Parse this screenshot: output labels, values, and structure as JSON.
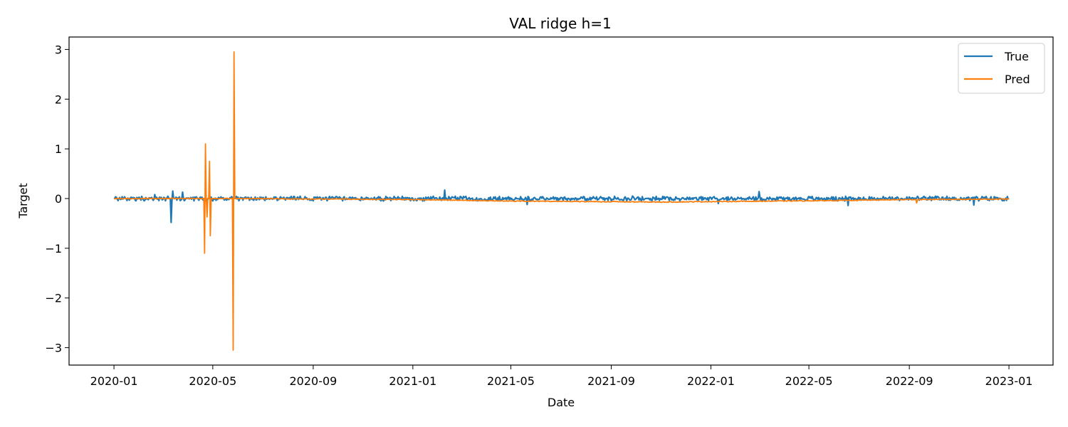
{
  "chart_data": {
    "type": "line",
    "title": "VAL ridge h=1",
    "xlabel": "Date",
    "ylabel": "Target",
    "xlim": [
      "2019-11-07",
      "2023-02-24"
    ],
    "ylim": [
      -3.35,
      3.25
    ],
    "x_ticks": [
      "2020-01",
      "2020-05",
      "2020-09",
      "2021-01",
      "2021-05",
      "2021-09",
      "2022-01",
      "2022-05",
      "2022-09",
      "2023-01"
    ],
    "y_ticks": [
      -3,
      -2,
      -1,
      0,
      1,
      2,
      3
    ],
    "y_tick_labels": [
      "−3",
      "−2",
      "−1",
      "0",
      "1",
      "2",
      "3"
    ],
    "grid": false,
    "legend_position": "top-right",
    "date_range": [
      "2020-01-01",
      "2023-01-01"
    ],
    "series": [
      {
        "name": "True",
        "color": "#1f77b4",
        "noise_amplitude": 0.035,
        "points": [
          {
            "x": "2020-01-01",
            "y": 0.0
          },
          {
            "x": "2020-02-20",
            "y": 0.08
          },
          {
            "x": "2020-03-11",
            "y": -0.48
          },
          {
            "x": "2020-03-13",
            "y": 0.15
          },
          {
            "x": "2020-03-25",
            "y": 0.13
          },
          {
            "x": "2021-02-09",
            "y": 0.17
          },
          {
            "x": "2021-05-21",
            "y": -0.12
          },
          {
            "x": "2022-01-10",
            "y": -0.1
          },
          {
            "x": "2022-03-01",
            "y": 0.14
          },
          {
            "x": "2022-06-18",
            "y": -0.14
          },
          {
            "x": "2022-11-19",
            "y": -0.13
          },
          {
            "x": "2023-01-01",
            "y": 0.0
          }
        ]
      },
      {
        "name": "Pred",
        "color": "#ff7f0e",
        "noise_amplitude": 0.008,
        "baseline": [
          {
            "x": "2020-01-01",
            "y": 0.0
          },
          {
            "x": "2020-06-01",
            "y": 0.0
          },
          {
            "x": "2021-01-01",
            "y": -0.02
          },
          {
            "x": "2021-05-01",
            "y": -0.05
          },
          {
            "x": "2021-11-01",
            "y": -0.07
          },
          {
            "x": "2022-06-01",
            "y": -0.04
          },
          {
            "x": "2022-09-01",
            "y": -0.02
          },
          {
            "x": "2023-01-01",
            "y": -0.01
          }
        ],
        "points": [
          {
            "x": "2020-04-21",
            "y": -1.1
          },
          {
            "x": "2020-04-22",
            "y": 1.1
          },
          {
            "x": "2020-04-24",
            "y": -0.37
          },
          {
            "x": "2020-04-27",
            "y": 0.75
          },
          {
            "x": "2020-04-28",
            "y": -0.75
          },
          {
            "x": "2020-05-26",
            "y": -3.05
          },
          {
            "x": "2020-05-27",
            "y": 2.95
          },
          {
            "x": "2022-09-10",
            "y": -0.09
          }
        ]
      }
    ]
  }
}
